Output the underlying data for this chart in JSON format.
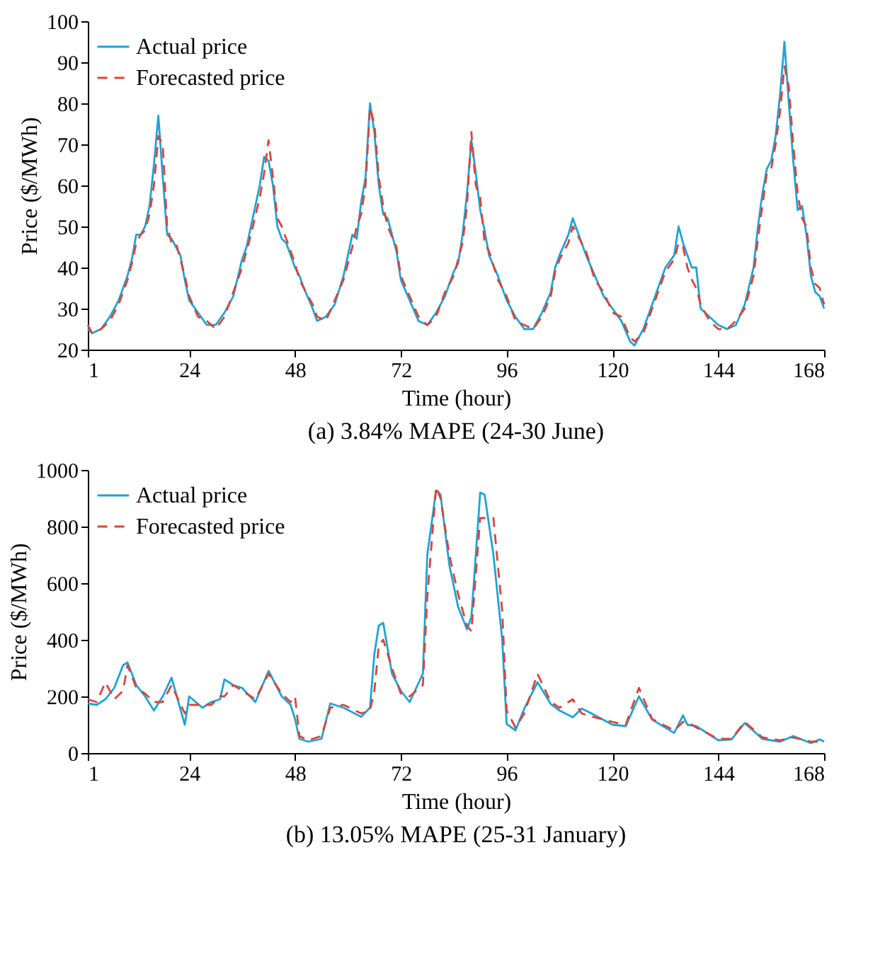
{
  "chart_data": [
    {
      "type": "line",
      "title": "(a) 3.84% MAPE (24-30 June)",
      "xlabel": "Time (hour)",
      "ylabel": "Price ($/MWh)",
      "xlim": [
        1,
        168
      ],
      "xticks": [
        1,
        24,
        48,
        72,
        96,
        120,
        144,
        168
      ],
      "ylim": [
        20,
        100
      ],
      "yticks": [
        20,
        30,
        40,
        50,
        60,
        70,
        80,
        90,
        100
      ],
      "grid": false,
      "legend": "top left",
      "marker": "none",
      "series": [
        {
          "name": "Actual price",
          "color": "#1fa3d6",
          "line_style": "solid",
          "x": [
            1,
            2,
            4,
            6,
            8,
            10,
            11,
            12,
            13,
            14,
            15,
            16,
            17,
            18,
            19,
            20,
            21,
            22,
            23,
            24,
            26,
            28,
            30,
            32,
            34,
            36,
            37,
            38,
            40,
            41,
            42,
            43,
            44,
            45,
            46,
            48,
            49,
            50,
            52,
            53,
            55,
            57,
            59,
            61,
            62,
            63,
            64,
            65,
            66,
            67,
            68,
            69,
            71,
            72,
            74,
            76,
            78,
            80,
            82,
            84,
            85,
            86,
            87,
            88,
            89,
            90,
            91,
            92,
            94,
            96,
            98,
            100,
            102,
            104,
            106,
            107,
            108,
            110,
            111,
            112,
            114,
            116,
            118,
            120,
            122,
            124,
            125,
            127,
            129,
            131,
            132,
            134,
            135,
            136,
            137,
            138,
            139,
            140,
            142,
            144,
            146,
            148,
            150,
            152,
            153,
            154,
            155,
            156,
            157,
            158,
            159,
            160,
            161,
            162,
            163,
            164,
            165,
            166,
            167,
            168
          ],
          "values": [
            25,
            24,
            25,
            28,
            32,
            38,
            42,
            48,
            48,
            50,
            55,
            65,
            77,
            62,
            48,
            47,
            45,
            43,
            37,
            32,
            29,
            26,
            26,
            29,
            33,
            42,
            45,
            50,
            60,
            67,
            66,
            60,
            50,
            47,
            46,
            40,
            38,
            35,
            30,
            27,
            28,
            31,
            38,
            48,
            47,
            56,
            62,
            80,
            73,
            60,
            53,
            52,
            44,
            37,
            32,
            27,
            26,
            29,
            33,
            39,
            41,
            48,
            58,
            71,
            63,
            54,
            49,
            43,
            38,
            32,
            28,
            25,
            25,
            29,
            34,
            40,
            43,
            48,
            52,
            49,
            43,
            38,
            33,
            30,
            27,
            22,
            21,
            25,
            31,
            37,
            40,
            43,
            50,
            46,
            43,
            40,
            40,
            30,
            28,
            26,
            25,
            26,
            31,
            40,
            50,
            58,
            64,
            66,
            72,
            82,
            95,
            80,
            66,
            54,
            55,
            48,
            38,
            34,
            33,
            30
          ]
        },
        {
          "name": "Forecasted price",
          "color": "#d9453a",
          "line_style": "dashed",
          "x": [
            1,
            2,
            4,
            6,
            8,
            10,
            11,
            12,
            13,
            14,
            15,
            16,
            17,
            18,
            19,
            20,
            21,
            22,
            23,
            24,
            26,
            28,
            30,
            32,
            34,
            36,
            37,
            38,
            40,
            41,
            42,
            43,
            44,
            45,
            46,
            48,
            49,
            50,
            52,
            53,
            55,
            57,
            59,
            61,
            62,
            63,
            64,
            65,
            66,
            67,
            68,
            69,
            71,
            72,
            74,
            76,
            78,
            80,
            82,
            84,
            85,
            86,
            87,
            88,
            89,
            90,
            91,
            92,
            94,
            96,
            98,
            100,
            102,
            104,
            106,
            107,
            108,
            110,
            111,
            112,
            114,
            116,
            118,
            120,
            122,
            124,
            125,
            127,
            129,
            131,
            132,
            134,
            135,
            136,
            137,
            138,
            139,
            140,
            142,
            144,
            146,
            148,
            150,
            152,
            153,
            154,
            155,
            156,
            157,
            158,
            159,
            160,
            161,
            162,
            163,
            164,
            165,
            166,
            167,
            168
          ],
          "values": [
            26,
            24,
            25,
            27,
            31,
            37,
            41,
            46,
            48,
            49,
            53,
            60,
            72,
            70,
            50,
            46,
            46,
            42,
            38,
            33,
            28,
            27,
            25,
            28,
            34,
            40,
            44,
            48,
            57,
            63,
            71,
            62,
            52,
            50,
            47,
            41,
            37,
            35,
            31,
            28,
            27,
            32,
            37,
            45,
            50,
            53,
            60,
            79,
            75,
            62,
            55,
            50,
            45,
            38,
            33,
            28,
            26,
            28,
            34,
            38,
            42,
            46,
            55,
            73,
            60,
            57,
            46,
            44,
            37,
            33,
            27,
            26,
            25,
            28,
            33,
            39,
            42,
            46,
            50,
            48,
            44,
            37,
            34,
            29,
            28,
            23,
            22,
            24,
            30,
            36,
            39,
            42,
            46,
            45,
            40,
            37,
            35,
            31,
            27,
            25,
            25,
            27,
            30,
            38,
            47,
            55,
            63,
            64,
            70,
            78,
            89,
            84,
            70,
            58,
            52,
            50,
            40,
            36,
            35,
            31
          ]
        }
      ]
    },
    {
      "type": "line",
      "title": "(b) 13.05% MAPE (25-31 January)",
      "xlabel": "Time (hour)",
      "ylabel": "Price ($/MWh)",
      "xlim": [
        1,
        168
      ],
      "xticks": [
        1,
        24,
        48,
        72,
        96,
        120,
        144,
        168
      ],
      "ylim": [
        0,
        1000
      ],
      "yticks": [
        0,
        200,
        400,
        600,
        800,
        1000
      ],
      "grid": false,
      "legend": "top left",
      "marker": "none",
      "series": [
        {
          "name": "Actual price",
          "color": "#1fa3d6",
          "line_style": "solid",
          "x": [
            1,
            3,
            5,
            7,
            9,
            10,
            12,
            14,
            16,
            18,
            20,
            23,
            24,
            27,
            29,
            31,
            32,
            34,
            36,
            39,
            42,
            45,
            47,
            48,
            49,
            51,
            54,
            56,
            59,
            63,
            65,
            66,
            67,
            68,
            70,
            72,
            74,
            77,
            78,
            80,
            81,
            83,
            85,
            87,
            88,
            90,
            91,
            93,
            95,
            96,
            98,
            100,
            103,
            106,
            108,
            111,
            113,
            115,
            120,
            123,
            126,
            129,
            134,
            136,
            137,
            139,
            144,
            147,
            150,
            154,
            158,
            161,
            165,
            167,
            168
          ],
          "values": [
            175,
            170,
            190,
            230,
            310,
            320,
            240,
            200,
            150,
            200,
            266,
            100,
            200,
            160,
            180,
            190,
            260,
            240,
            230,
            180,
            290,
            200,
            170,
            120,
            50,
            40,
            50,
            175,
            160,
            128,
            160,
            350,
            450,
            460,
            280,
            220,
            180,
            280,
            700,
            928,
            913,
            664,
            516,
            437,
            480,
            920,
            913,
            700,
            400,
            103,
            80,
            157,
            250,
            173,
            150,
            126,
            157,
            142,
            100,
            95,
            200,
            118,
            71,
            133,
            100,
            95,
            45,
            48,
            106,
            50,
            40,
            60,
            35,
            48,
            40
          ]
        },
        {
          "name": "Forecasted price",
          "color": "#d9453a",
          "line_style": "dashed",
          "x": [
            1,
            3,
            5,
            7,
            9,
            10,
            12,
            14,
            16,
            18,
            20,
            23,
            24,
            27,
            29,
            31,
            32,
            34,
            36,
            39,
            42,
            45,
            47,
            48,
            49,
            51,
            54,
            56,
            59,
            63,
            65,
            66,
            67,
            68,
            70,
            72,
            74,
            77,
            78,
            80,
            81,
            83,
            85,
            87,
            88,
            90,
            91,
            93,
            95,
            96,
            98,
            100,
            103,
            106,
            108,
            111,
            113,
            115,
            120,
            123,
            126,
            129,
            134,
            136,
            137,
            139,
            144,
            147,
            150,
            154,
            158,
            161,
            165,
            167,
            168
          ],
          "values": [
            190,
            180,
            250,
            190,
            220,
            310,
            230,
            210,
            180,
            180,
            240,
            140,
            170,
            170,
            170,
            200,
            200,
            240,
            220,
            190,
            280,
            210,
            180,
            200,
            60,
            45,
            60,
            160,
            170,
            140,
            150,
            220,
            380,
            400,
            300,
            210,
            200,
            240,
            550,
            940,
            900,
            700,
            560,
            450,
            430,
            830,
            830,
            830,
            500,
            150,
            90,
            140,
            280,
            180,
            160,
            190,
            140,
            130,
            110,
            100,
            230,
            120,
            80,
            110,
            110,
            90,
            50,
            50,
            110,
            55,
            45,
            55,
            40,
            40,
            50
          ]
        }
      ]
    }
  ]
}
